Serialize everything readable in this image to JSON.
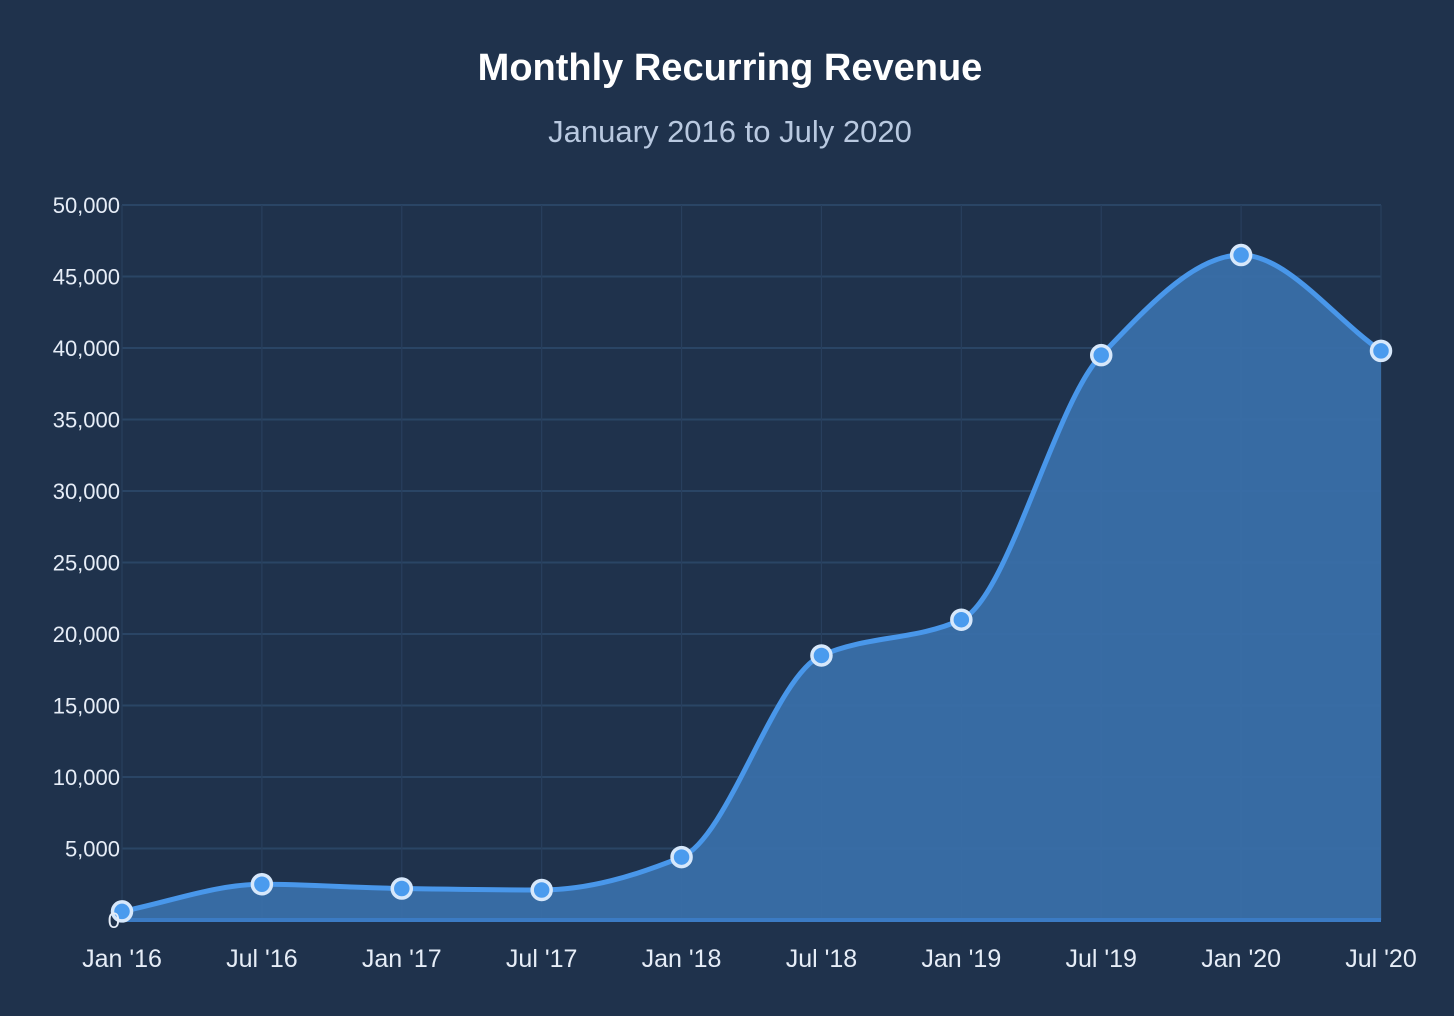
{
  "colors": {
    "background": "#1f324c",
    "line": "#4997ea",
    "area": "#3a70aa",
    "point_fill": "#4a9bee",
    "point_stroke": "#d7e8fb"
  },
  "chart_data": {
    "type": "area",
    "title": "Monthly Recurring Revenue",
    "subtitle": "January 2016 to July 2020",
    "xlabel": "",
    "ylabel": "",
    "categories": [
      "Jan '16",
      "Jul '16",
      "Jan '17",
      "Jul '17",
      "Jan '18",
      "Jul '18",
      "Jan '19",
      "Jul '19",
      "Jan '20",
      "Jul '20"
    ],
    "series": [
      {
        "values": [
          600,
          2500,
          2200,
          2100,
          4400,
          18500,
          21000,
          39500,
          46500,
          39800
        ]
      }
    ],
    "ylim": [
      0,
      50000
    ],
    "yticks": [
      0,
      5000,
      10000,
      15000,
      20000,
      25000,
      30000,
      35000,
      40000,
      45000,
      50000
    ],
    "ytick_labels": [
      "0",
      "5,000",
      "10,000",
      "15,000",
      "20,000",
      "25,000",
      "30,000",
      "35,000",
      "40,000",
      "45,000",
      "50,000"
    ],
    "grid": true,
    "legend": "none",
    "smooth": true,
    "markers": true
  }
}
